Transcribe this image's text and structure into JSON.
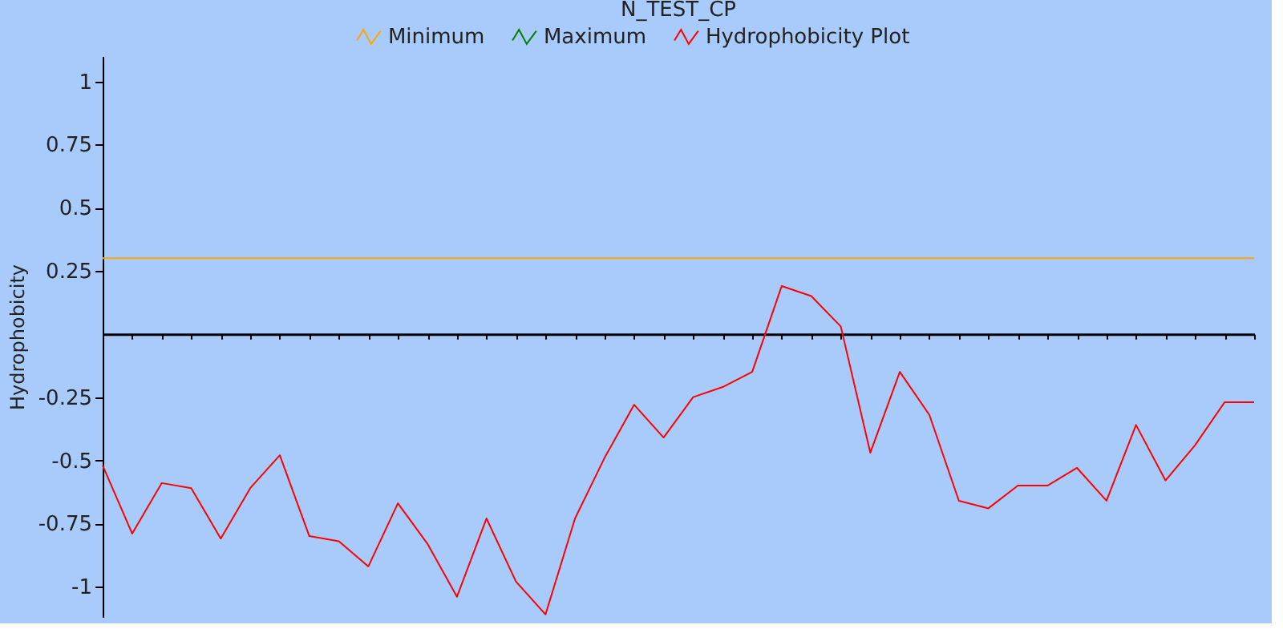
{
  "chart_data": {
    "type": "line",
    "title": "N_TEST_CP",
    "ylabel": "Hydrophobicity",
    "categories": [
      null,
      null,
      null,
      null,
      null,
      null,
      null,
      null,
      null,
      null,
      null,
      null,
      null,
      null,
      null,
      null,
      null,
      null,
      null,
      null,
      null,
      null,
      null,
      null,
      null,
      null,
      null,
      null,
      null,
      null,
      null,
      null,
      null,
      null,
      null,
      null,
      null,
      null,
      null,
      null
    ],
    "series": [
      {
        "name": "Minimum",
        "color": "#ffa500",
        "values": [
          0.3,
          0.3,
          0.3,
          0.3,
          0.3,
          0.3,
          0.3,
          0.3,
          0.3,
          0.3,
          0.3,
          0.3,
          0.3,
          0.3,
          0.3,
          0.3,
          0.3,
          0.3,
          0.3,
          0.3,
          0.3,
          0.3,
          0.3,
          0.3,
          0.3,
          0.3,
          0.3,
          0.3,
          0.3,
          0.3,
          0.3,
          0.3,
          0.3,
          0.3,
          0.3,
          0.3,
          0.3,
          0.3,
          0.3,
          0.3
        ]
      },
      {
        "name": "Maximum",
        "color": "#008000",
        "values": [
          null,
          null,
          null,
          null,
          null,
          null,
          null,
          null,
          null,
          null,
          null,
          null,
          null,
          null,
          null,
          null,
          null,
          null,
          null,
          null,
          null,
          null,
          null,
          null,
          null,
          null,
          null,
          null,
          null,
          null,
          null,
          null,
          null,
          null,
          null,
          null,
          null,
          null,
          null,
          null
        ]
      },
      {
        "name": "Hydrophobicity Plot",
        "color": "#ff0000",
        "values": [
          -0.52,
          -0.79,
          -0.59,
          -0.61,
          -0.81,
          -0.61,
          -0.48,
          -0.8,
          -0.82,
          -0.92,
          -0.67,
          -0.83,
          -1.04,
          -0.73,
          -0.98,
          -1.11,
          -0.73,
          -0.49,
          -0.28,
          -0.41,
          -0.25,
          -0.21,
          -0.15,
          0.19,
          0.15,
          0.03,
          -0.47,
          -0.15,
          -0.32,
          -0.66,
          -0.69,
          -0.6,
          -0.6,
          -0.53,
          -0.66,
          -0.36,
          -0.58,
          -0.44,
          -0.27,
          -0.27
        ]
      }
    ],
    "ylim": [
      -1.12,
      1.1
    ],
    "yticks": [
      -1,
      -0.75,
      -0.5,
      -0.25,
      0.25,
      0.5,
      0.75,
      1
    ],
    "legend": "top",
    "marker": "none",
    "line_style": "solid"
  }
}
